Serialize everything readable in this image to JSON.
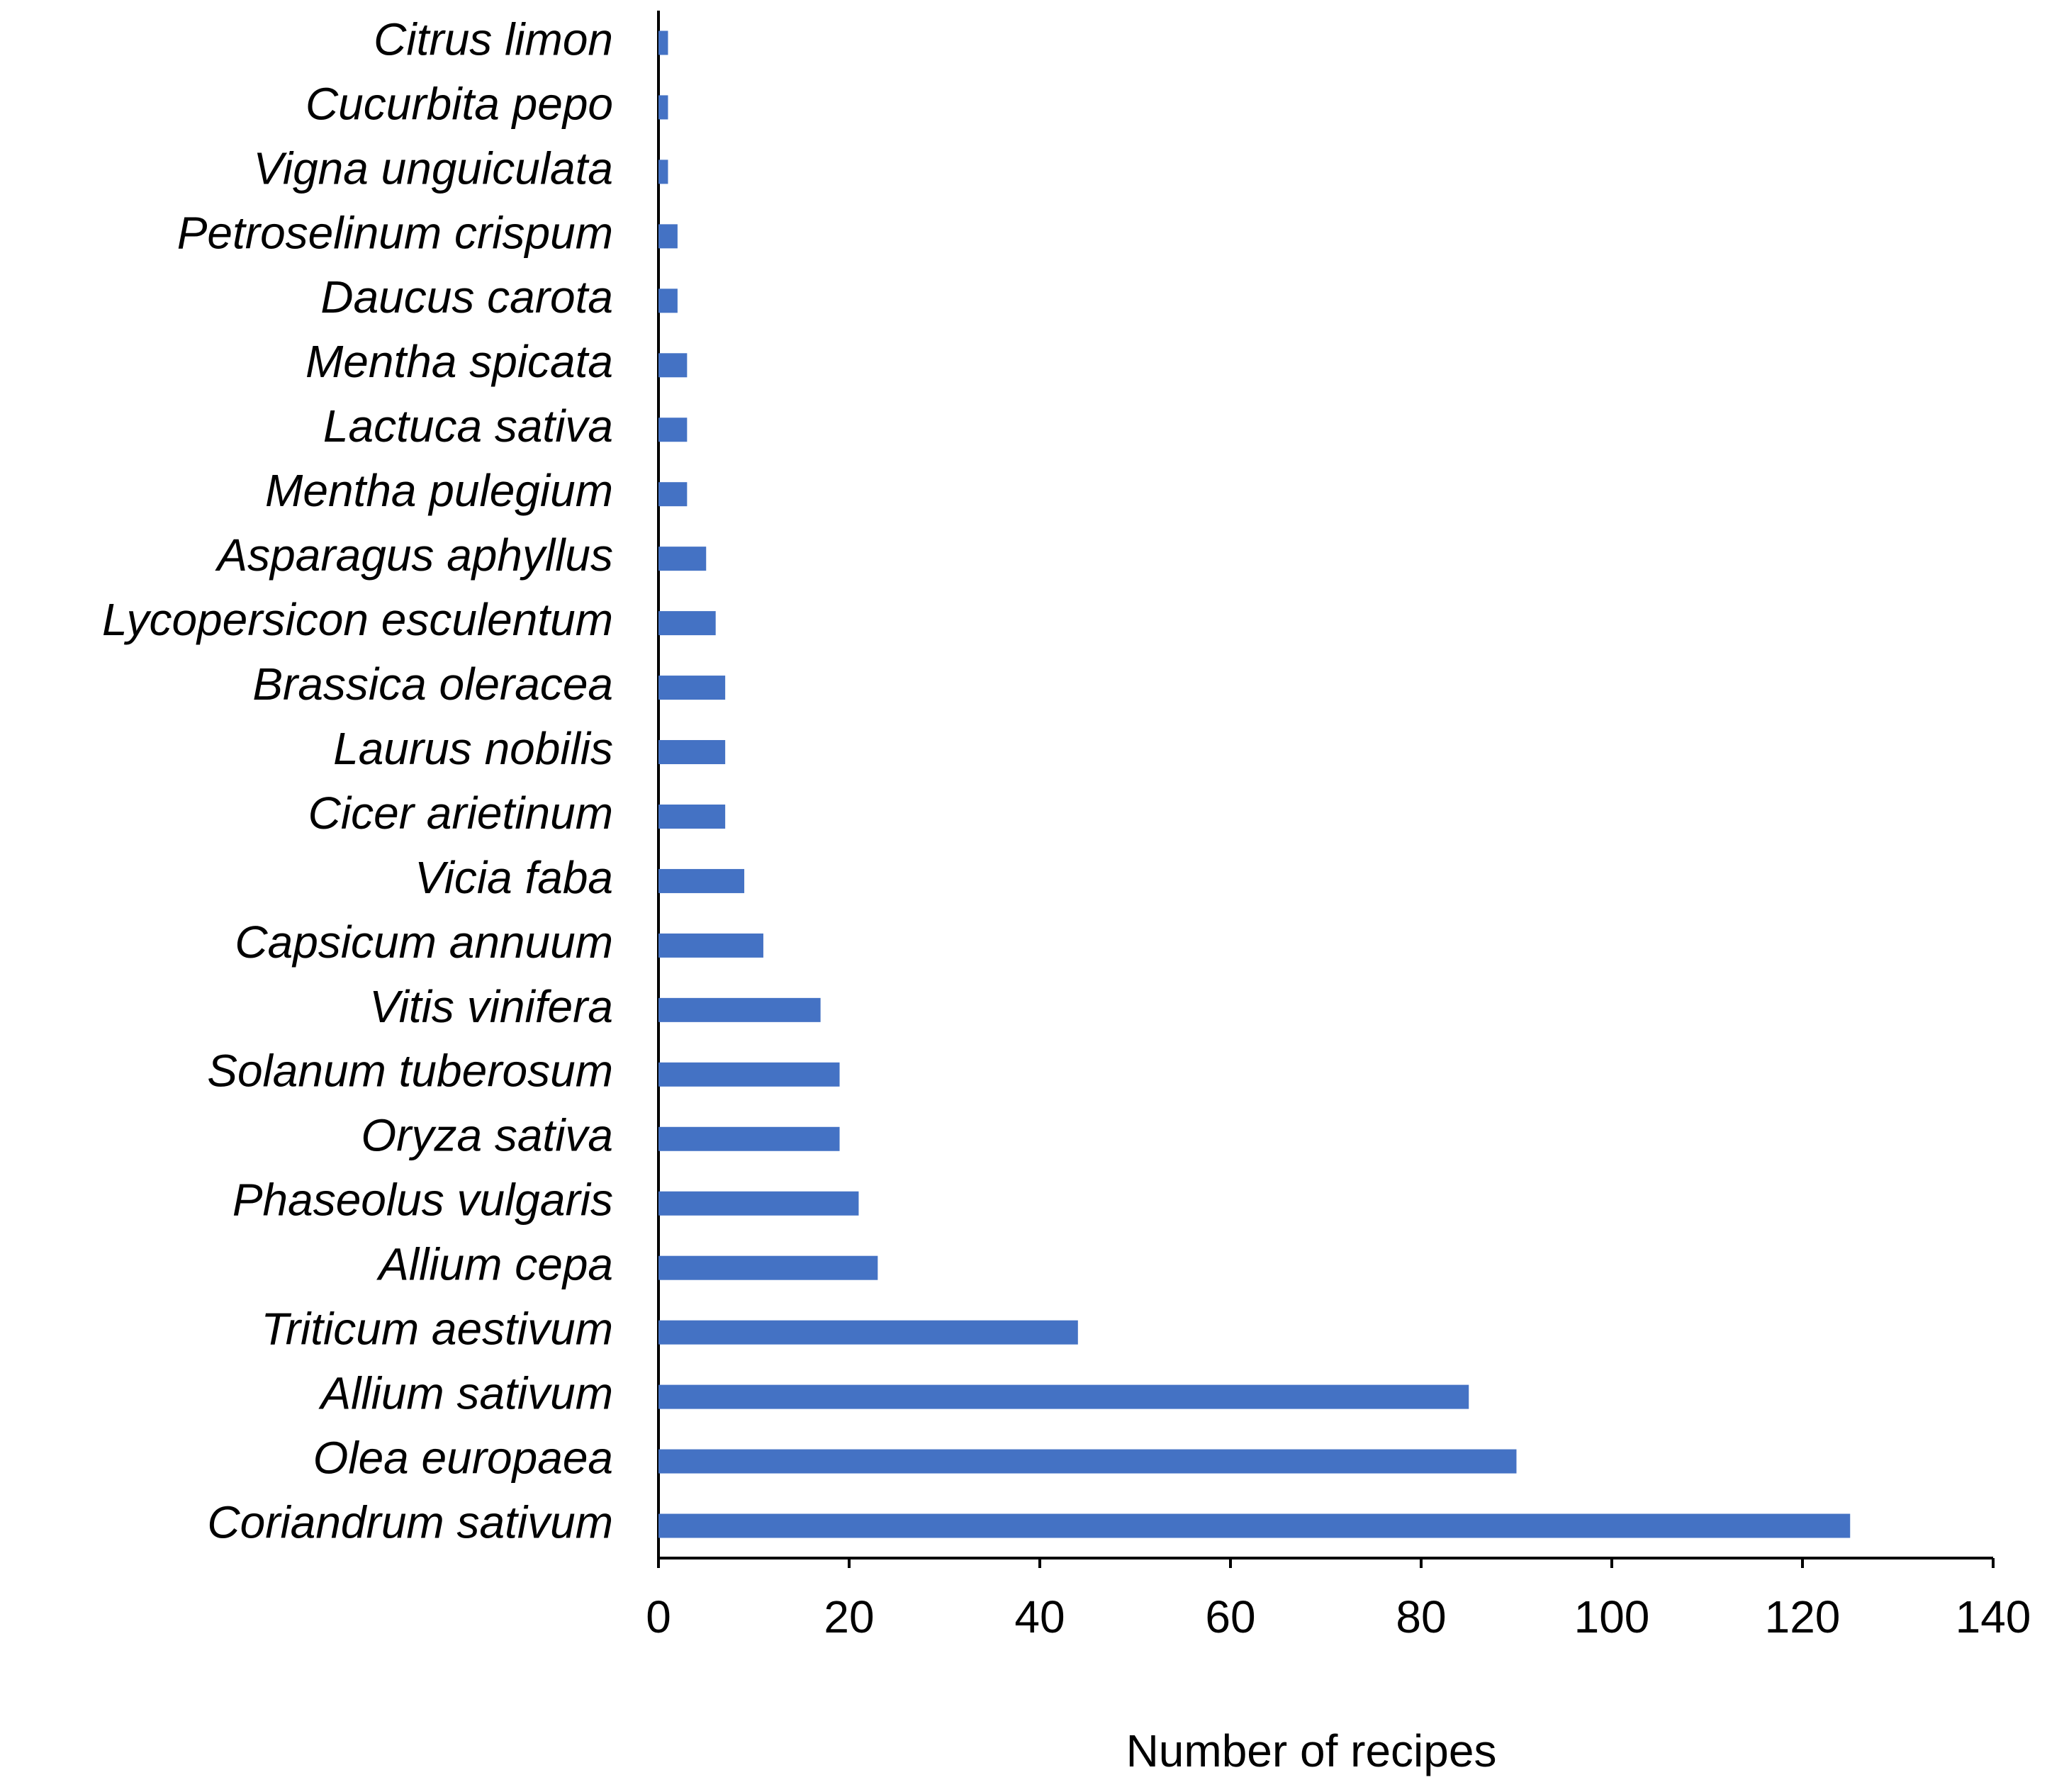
{
  "chart_data": {
    "type": "barh",
    "x_label": "Number of recipes",
    "categories": [
      "Citrus limon",
      "Cucurbita pepo",
      "Vigna unguiculata",
      "Petroselinum crispum",
      "Daucus carota",
      "Mentha spicata",
      "Lactuca sativa",
      "Mentha pulegium",
      "Asparagus aphyllus",
      "Lycopersicon esculentum",
      "Brassica oleracea",
      "Laurus nobilis",
      "Cicer arietinum",
      "Vicia faba",
      "Capsicum annuum",
      "Vitis vinifera",
      "Solanum tuberosum",
      "Oryza sativa",
      "Phaseolus vulgaris",
      "Allium cepa",
      "Triticum aestivum",
      "Allium sativum",
      "Olea europaea",
      "Coriandrum sativum"
    ],
    "values": [
      1,
      1,
      1,
      2,
      2,
      3,
      3,
      3,
      5,
      6,
      7,
      7,
      7,
      9,
      11,
      17,
      19,
      19,
      21,
      23,
      44,
      85,
      90,
      125
    ],
    "color": "#4472c4",
    "xlim": [
      0,
      140
    ],
    "xticks": [
      0,
      20,
      40,
      60,
      80,
      100,
      120,
      140
    ],
    "grid": false
  }
}
